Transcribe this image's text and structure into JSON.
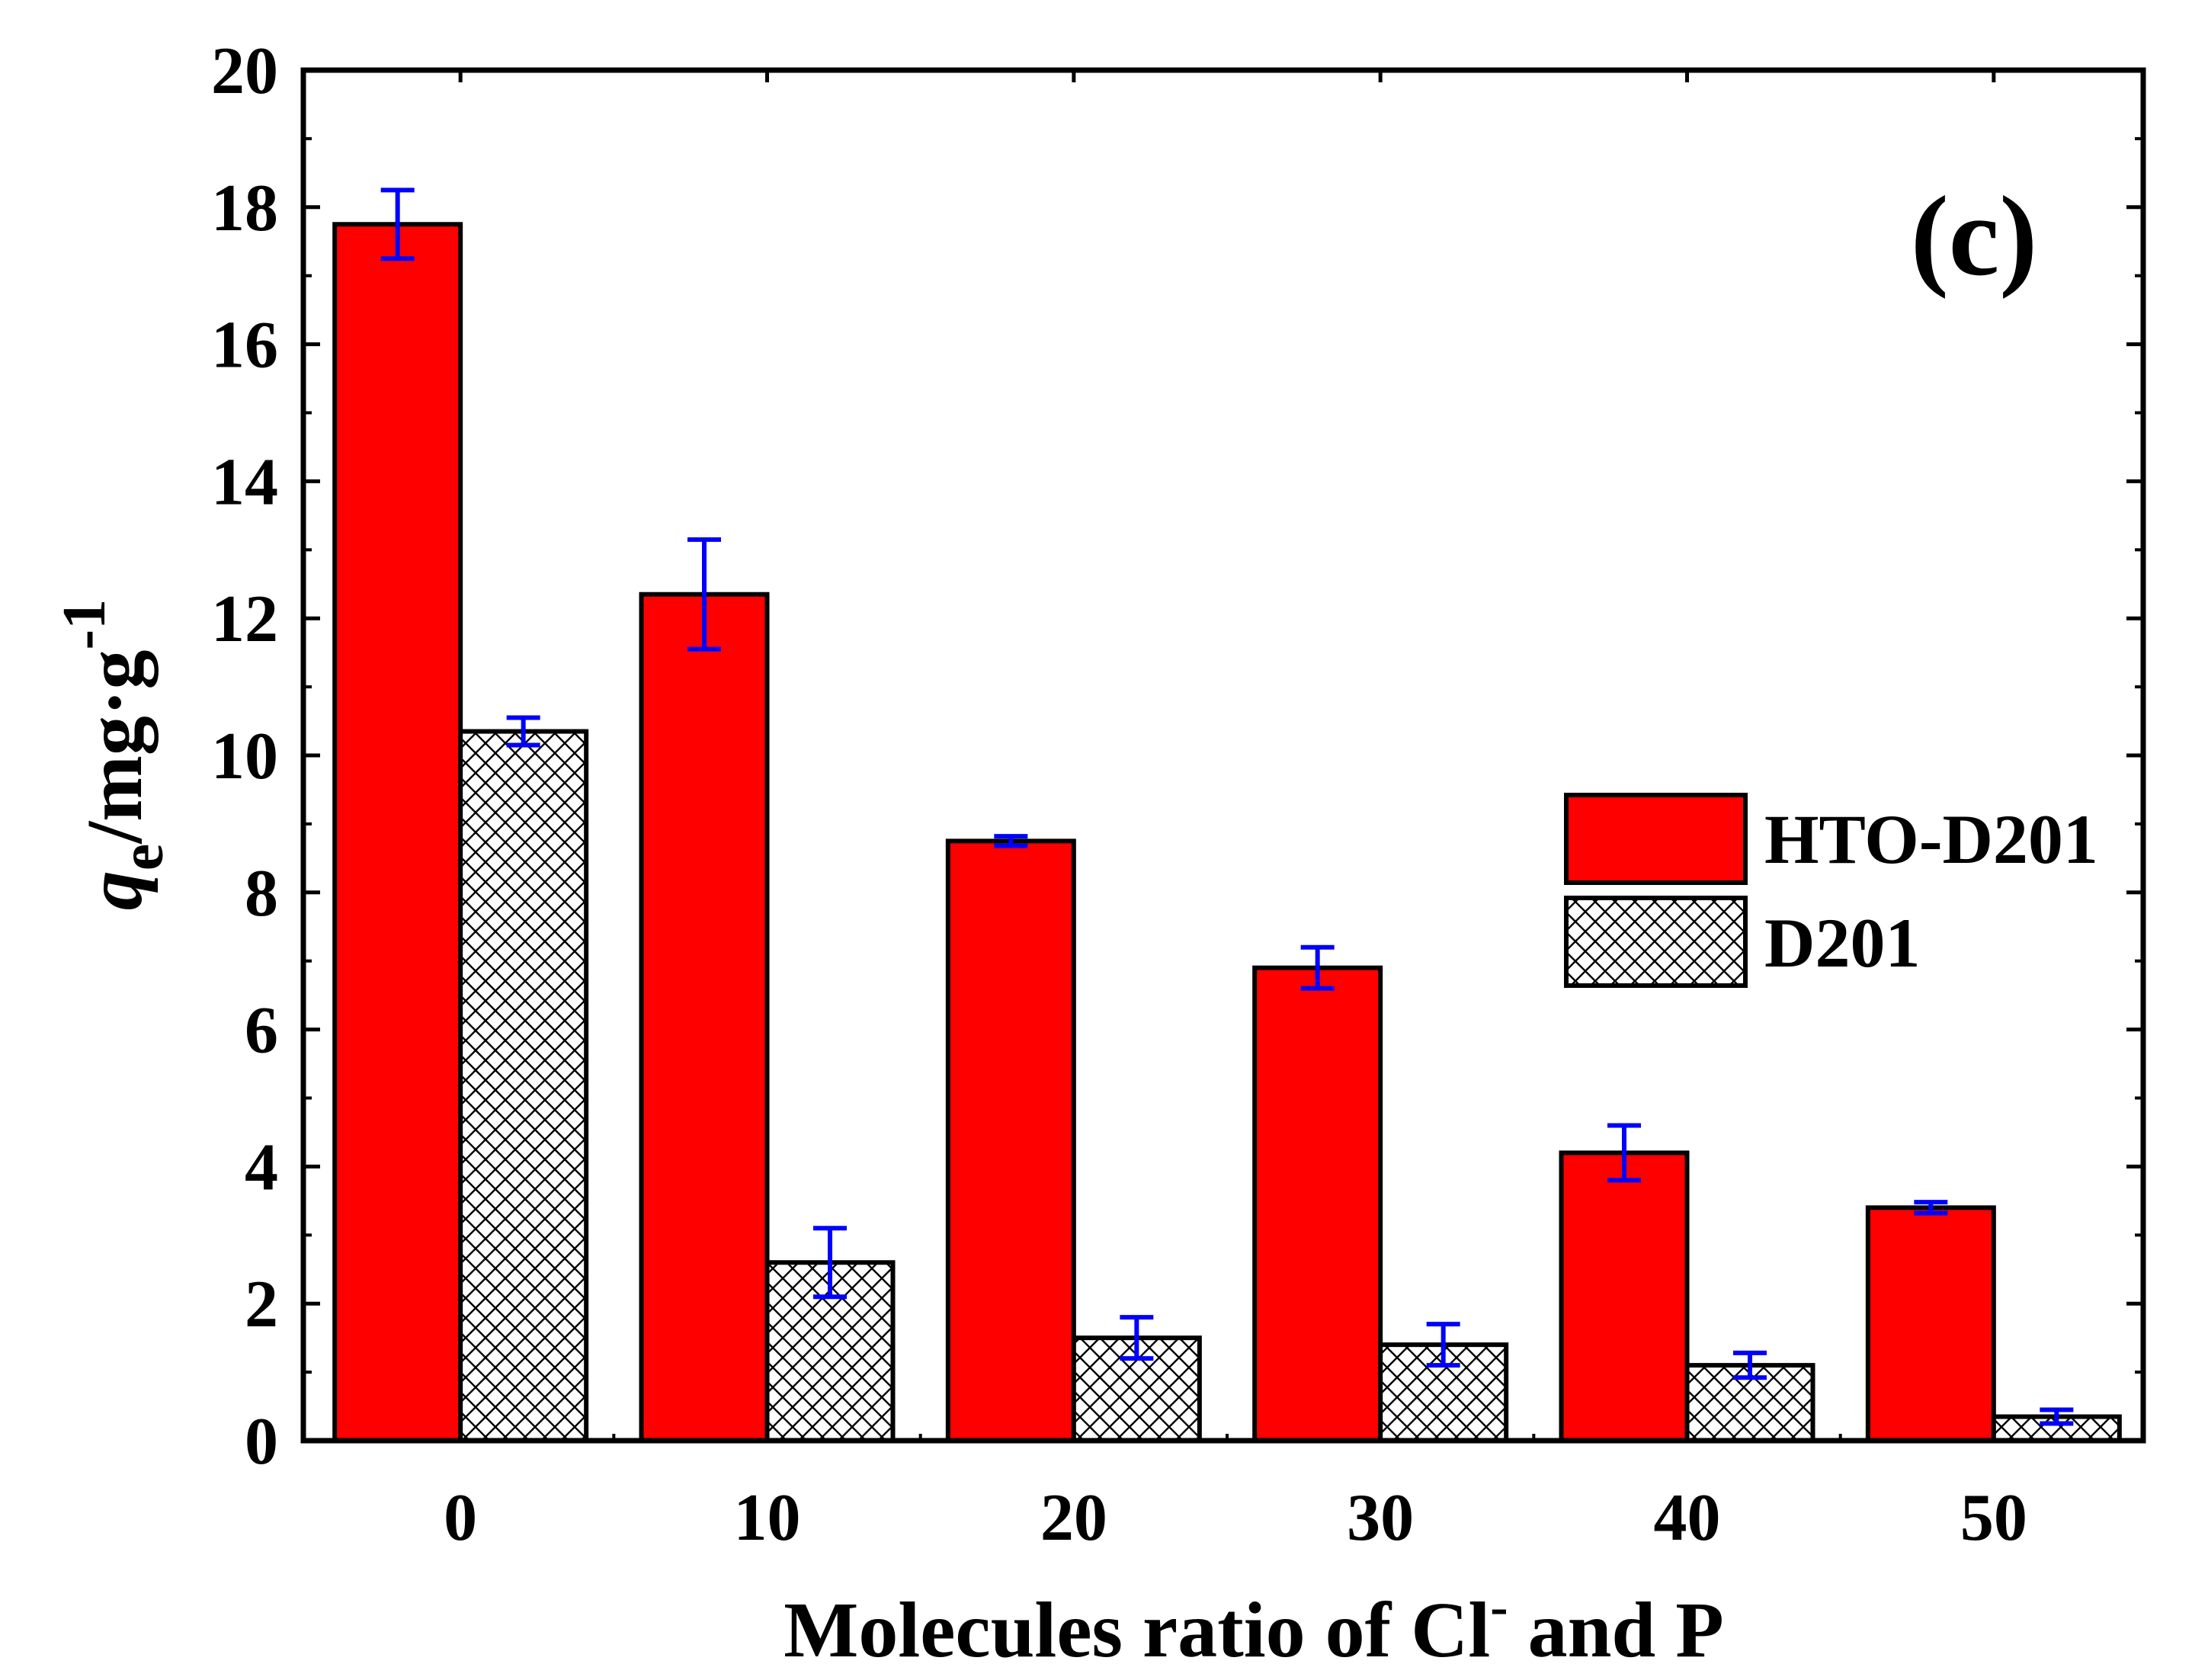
{
  "chart_data": {
    "type": "bar",
    "panel_label": "(c)",
    "categories": [
      "0",
      "10",
      "20",
      "30",
      "40",
      "50"
    ],
    "series": [
      {
        "name": "HTO-D201",
        "color": "#ff0000",
        "pattern": "solid",
        "values": [
          17.75,
          12.35,
          8.75,
          6.9,
          4.2,
          3.4
        ],
        "errors": [
          0.5,
          0.8,
          0.07,
          0.3,
          0.4,
          0.08
        ]
      },
      {
        "name": "D201",
        "color": "#ffffff",
        "pattern": "crosshatch",
        "values": [
          10.35,
          2.6,
          1.5,
          1.4,
          1.1,
          0.35
        ],
        "errors": [
          0.2,
          0.5,
          0.3,
          0.3,
          0.18,
          0.1
        ]
      }
    ],
    "error_bar_color": "#0000ff",
    "y_ticks": [
      "0",
      "2",
      "4",
      "6",
      "8",
      "10",
      "12",
      "14",
      "16",
      "18",
      "20"
    ],
    "ylim": [
      0,
      20
    ],
    "xlabel": {
      "main": "Molecules ratio of Cl",
      "sup": "-",
      "rest": " and P"
    },
    "ylabel": {
      "q": "q",
      "sub": "e",
      "rest": "/mg·g",
      "sup": "-1"
    },
    "legend_position": "center-right",
    "grid": false
  }
}
